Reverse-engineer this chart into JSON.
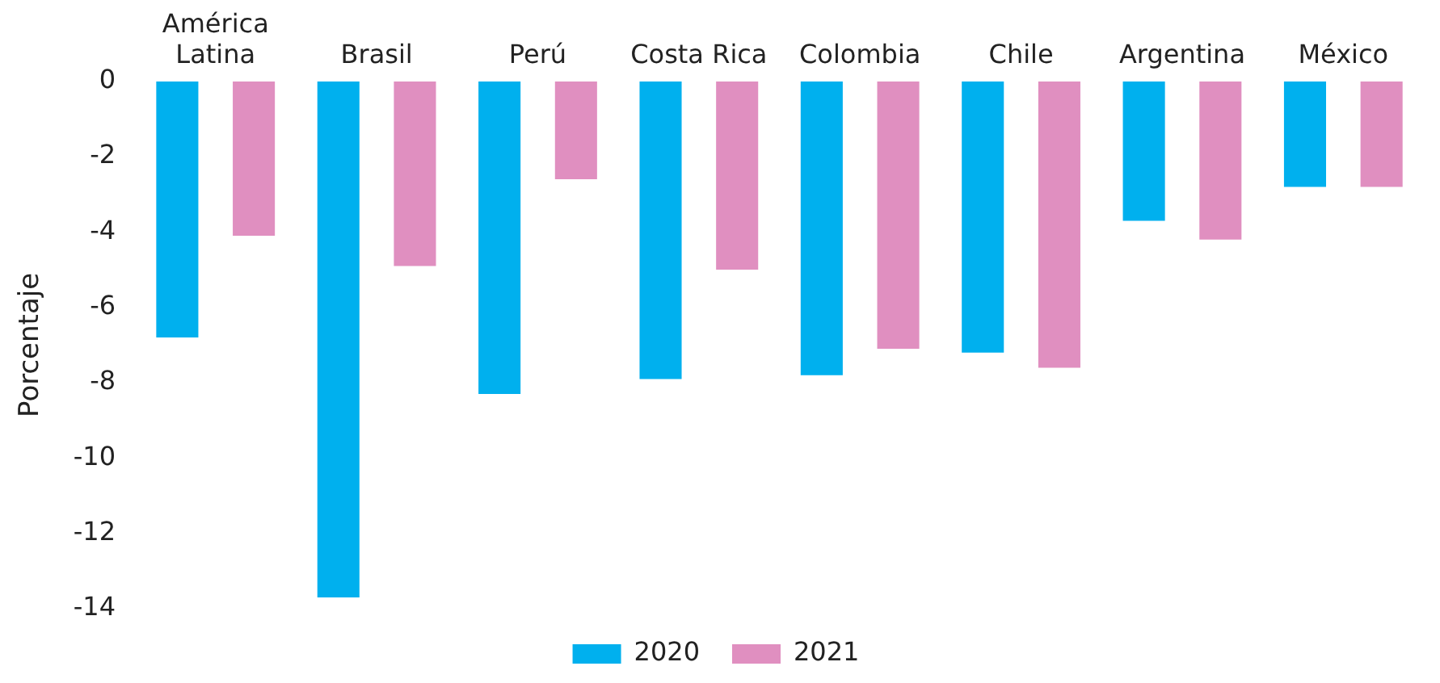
{
  "chart_data": {
    "type": "bar",
    "ylabel": "Porcentaje",
    "categories": [
      "América Latina",
      "Brasil",
      "Perú",
      "Costa Rica",
      "Colombia",
      "Chile",
      "Argentina",
      "México"
    ],
    "series": [
      {
        "name": "2020",
        "color": "#00b0ee",
        "values": [
          -6.8,
          -13.7,
          -8.3,
          -7.9,
          -7.8,
          -7.2,
          -3.7,
          -2.8
        ]
      },
      {
        "name": "2021",
        "color": "#e08fc0",
        "values": [
          -4.1,
          -4.9,
          -2.6,
          -5.0,
          -7.1,
          -7.6,
          -4.2,
          -2.8
        ]
      }
    ],
    "ylim": [
      -14,
      0
    ],
    "yticks": [
      -14,
      -12,
      -10,
      -8,
      -6,
      -4,
      -2,
      0
    ],
    "grid": false,
    "legend": "bottom"
  }
}
